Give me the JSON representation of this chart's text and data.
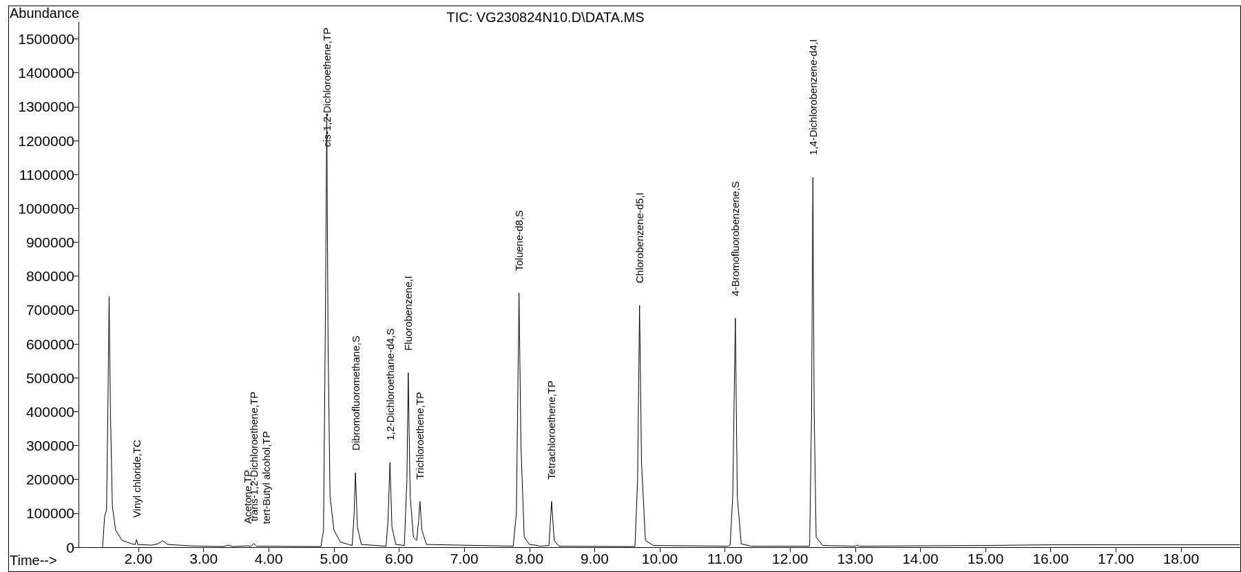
{
  "chart_data": {
    "type": "line",
    "title": "TIC: VG230824N10.D\\DATA.MS",
    "xlabel": "Time-->",
    "ylabel": "Abundance",
    "series": [
      {
        "color": "#000000",
        "x": [
          1.45,
          1.48,
          1.51,
          1.53,
          1.55,
          1.57,
          1.6,
          1.65,
          1.75,
          1.9,
          1.95,
          1.97,
          1.99,
          2.2,
          2.3,
          2.37,
          2.45,
          2.8,
          3.3,
          3.38,
          3.45,
          3.67,
          3.73,
          3.77,
          3.81,
          3.96,
          4.8,
          4.84,
          4.87,
          4.89,
          4.91,
          4.94,
          5.0,
          5.1,
          5.28,
          5.31,
          5.33,
          5.36,
          5.42,
          5.8,
          5.83,
          5.86,
          5.89,
          5.95,
          6.08,
          6.12,
          6.14,
          6.17,
          6.22,
          6.27,
          6.3,
          6.32,
          6.35,
          6.42,
          7.75,
          7.8,
          7.84,
          7.87,
          7.92,
          8.0,
          8.1,
          8.15,
          8.3,
          8.34,
          8.38,
          8.45,
          9.62,
          9.66,
          9.69,
          9.72,
          9.78,
          9.9,
          11.05,
          11.08,
          11.12,
          11.16,
          11.19,
          11.25,
          11.4,
          12.3,
          12.33,
          12.35,
          12.37,
          12.4,
          12.5,
          13.0,
          13.03,
          13.06,
          14.0,
          15.0,
          16.0,
          17.0,
          18.0,
          18.9
        ],
        "values": [
          0,
          90000,
          110000,
          400000,
          740000,
          400000,
          120000,
          50000,
          20000,
          10000,
          8000,
          22000,
          8000,
          6000,
          10000,
          19000,
          8000,
          4000,
          2000,
          6000,
          2000,
          4000,
          3000,
          11000,
          3000,
          3000,
          2000,
          50000,
          700000,
          1280000,
          600000,
          150000,
          50000,
          15000,
          5000,
          100000,
          220000,
          60000,
          8000,
          3000,
          80000,
          250000,
          60000,
          8000,
          5000,
          200000,
          515000,
          150000,
          30000,
          20000,
          80000,
          135000,
          50000,
          8000,
          3000,
          100000,
          750000,
          300000,
          30000,
          8000,
          6000,
          3000,
          5000,
          135000,
          20000,
          3000,
          2000,
          200000,
          714000,
          250000,
          20000,
          5000,
          3000,
          6000,
          150000,
          676000,
          150000,
          10000,
          3000,
          3000,
          400000,
          1092000,
          400000,
          30000,
          5000,
          3000,
          6000,
          3000,
          4000,
          5000,
          7000,
          7000,
          7000,
          7000
        ]
      }
    ],
    "xlim": [
      1.08,
      18.92
    ],
    "ylim": [
      0,
      1550000
    ],
    "xticks": [
      {
        "value": 2,
        "label": "2.00"
      },
      {
        "value": 3,
        "label": "3.00"
      },
      {
        "value": 4,
        "label": "4.00"
      },
      {
        "value": 5,
        "label": "5.00"
      },
      {
        "value": 6,
        "label": "6.00"
      },
      {
        "value": 7,
        "label": "7.00"
      },
      {
        "value": 8,
        "label": "8.00"
      },
      {
        "value": 9,
        "label": "9.00"
      },
      {
        "value": 10,
        "label": "10.00"
      },
      {
        "value": 11,
        "label": "11.00"
      },
      {
        "value": 12,
        "label": "12.00"
      },
      {
        "value": 13,
        "label": "13.00"
      },
      {
        "value": 14,
        "label": "14.00"
      },
      {
        "value": 15,
        "label": "15.00"
      },
      {
        "value": 16,
        "label": "16.00"
      },
      {
        "value": 17,
        "label": "17.00"
      },
      {
        "value": 18,
        "label": "18.00"
      }
    ],
    "yticks": [
      0,
      100000,
      200000,
      300000,
      400000,
      500000,
      600000,
      700000,
      800000,
      900000,
      1000000,
      1100000,
      1200000,
      1300000,
      1400000,
      1500000
    ],
    "grid": false,
    "marker": "none",
    "line_style": "solid",
    "annotations": [
      {
        "text": "Vinyl chloride,TC",
        "x": 1.97,
        "y": 22000
      },
      {
        "text": "Acetone,TP",
        "x": 3.67,
        "y": 4000
      },
      {
        "text": "trans-1,2-Dichloroethene,TP",
        "x": 3.77,
        "y": 11000
      },
      {
        "text": "tert-Butyl alcohol,TP",
        "x": 3.96,
        "y": 3000
      },
      {
        "text": "cis-1,2-Dichloroethene,TP",
        "x": 4.89,
        "y": 1280000
      },
      {
        "text": "Dibromofluoromethane,S",
        "x": 5.33,
        "y": 220000
      },
      {
        "text": "1,2-Dichloroethane-d4,S",
        "x": 5.86,
        "y": 250000
      },
      {
        "text": "Fluorobenzene,I",
        "x": 6.14,
        "y": 515000
      },
      {
        "text": "Trichloroethene,TP",
        "x": 6.32,
        "y": 135000
      },
      {
        "text": "Toluene-d8,S",
        "x": 7.84,
        "y": 750000
      },
      {
        "text": "Tetrachloroethene,TP",
        "x": 8.34,
        "y": 135000
      },
      {
        "text": "Chlorobenzene-d5,I",
        "x": 9.69,
        "y": 714000
      },
      {
        "text": "4-Bromofluorobenzene,S",
        "x": 11.16,
        "y": 676000
      },
      {
        "text": "1,4-Dichlorobenzene-d4,I",
        "x": 12.35,
        "y": 1092000
      }
    ]
  }
}
